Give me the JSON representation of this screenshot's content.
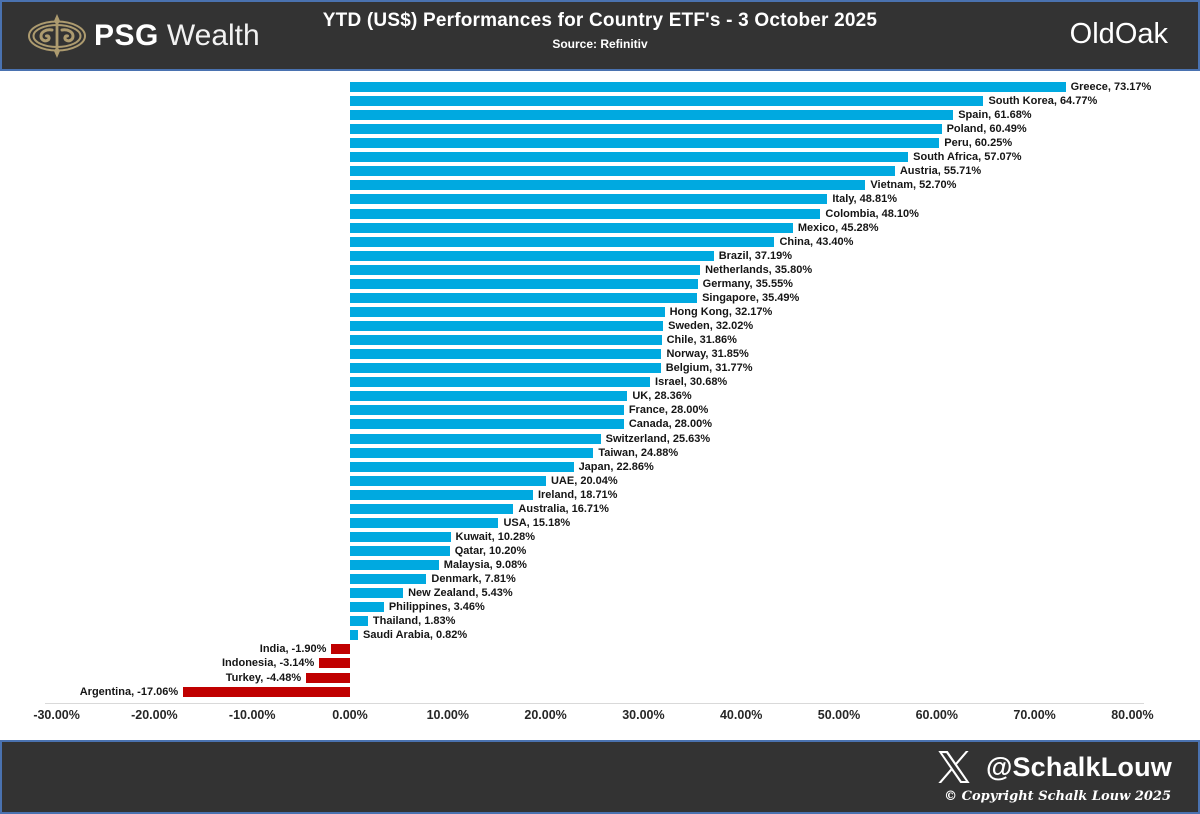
{
  "header": {
    "brand_bold": "PSG",
    "brand_light": "Wealth",
    "title": "YTD (US$) Performances for Country ETF's - 3 October 2025",
    "subtitle": "Source: Refinitiv",
    "right_logo_part1": "Old",
    "right_logo_part2": "Oak"
  },
  "chart_data": {
    "type": "bar",
    "orientation": "horizontal",
    "title": "YTD (US$) Performances for Country ETF's - 3 October 2025",
    "source": "Refinitiv",
    "categories": [
      "Greece",
      "South Korea",
      "Spain",
      "Poland",
      "Peru",
      "South Africa",
      "Austria",
      "Vietnam",
      "Italy",
      "Colombia",
      "Mexico",
      "China",
      "Brazil",
      "Netherlands",
      "Germany",
      "Singapore",
      "Hong Kong",
      "Sweden",
      "Chile",
      "Norway",
      "Belgium",
      "Israel",
      "UK",
      "France",
      "Canada",
      "Switzerland",
      "Taiwan",
      "Japan",
      "UAE",
      "Ireland",
      "Australia",
      "USA",
      "Kuwait",
      "Qatar",
      "Malaysia",
      "Denmark",
      "New Zealand",
      "Philippines",
      "Thailand",
      "Saudi Arabia",
      "India",
      "Indonesia",
      "Turkey",
      "Argentina"
    ],
    "values": [
      73.17,
      64.77,
      61.68,
      60.49,
      60.25,
      57.07,
      55.71,
      52.7,
      48.81,
      48.1,
      45.28,
      43.4,
      37.19,
      35.8,
      35.55,
      35.49,
      32.17,
      32.02,
      31.86,
      31.85,
      31.77,
      30.68,
      28.36,
      28.0,
      28.0,
      25.63,
      24.88,
      22.86,
      20.04,
      18.71,
      16.71,
      15.18,
      10.28,
      10.2,
      9.08,
      7.81,
      5.43,
      3.46,
      1.83,
      0.82,
      -1.9,
      -3.14,
      -4.48,
      -17.06
    ],
    "label_format": "{category}, {value}%",
    "xlim": [
      -30,
      80
    ],
    "x_tick_values": [
      -30,
      -20,
      -10,
      0,
      10,
      20,
      30,
      40,
      50,
      60,
      70,
      80
    ],
    "x_tick_format": "{value}%",
    "positive_color": "#00a9e0",
    "negative_color": "#c00000",
    "grid": false,
    "legend": false
  },
  "footer": {
    "x_icon": "x-logo",
    "handle": "@SchalkLouw",
    "copyright": "© Copyright Schalk Louw 2025"
  },
  "colors": {
    "band_background": "#333333",
    "band_border": "#4a72b0",
    "chart_background": "#ffffff",
    "positive_bar": "#00a9e0",
    "negative_bar": "#c00000",
    "emblem_gold": "#ad9b6f",
    "text_on_dark": "#ffffff",
    "label_text": "#151515"
  }
}
